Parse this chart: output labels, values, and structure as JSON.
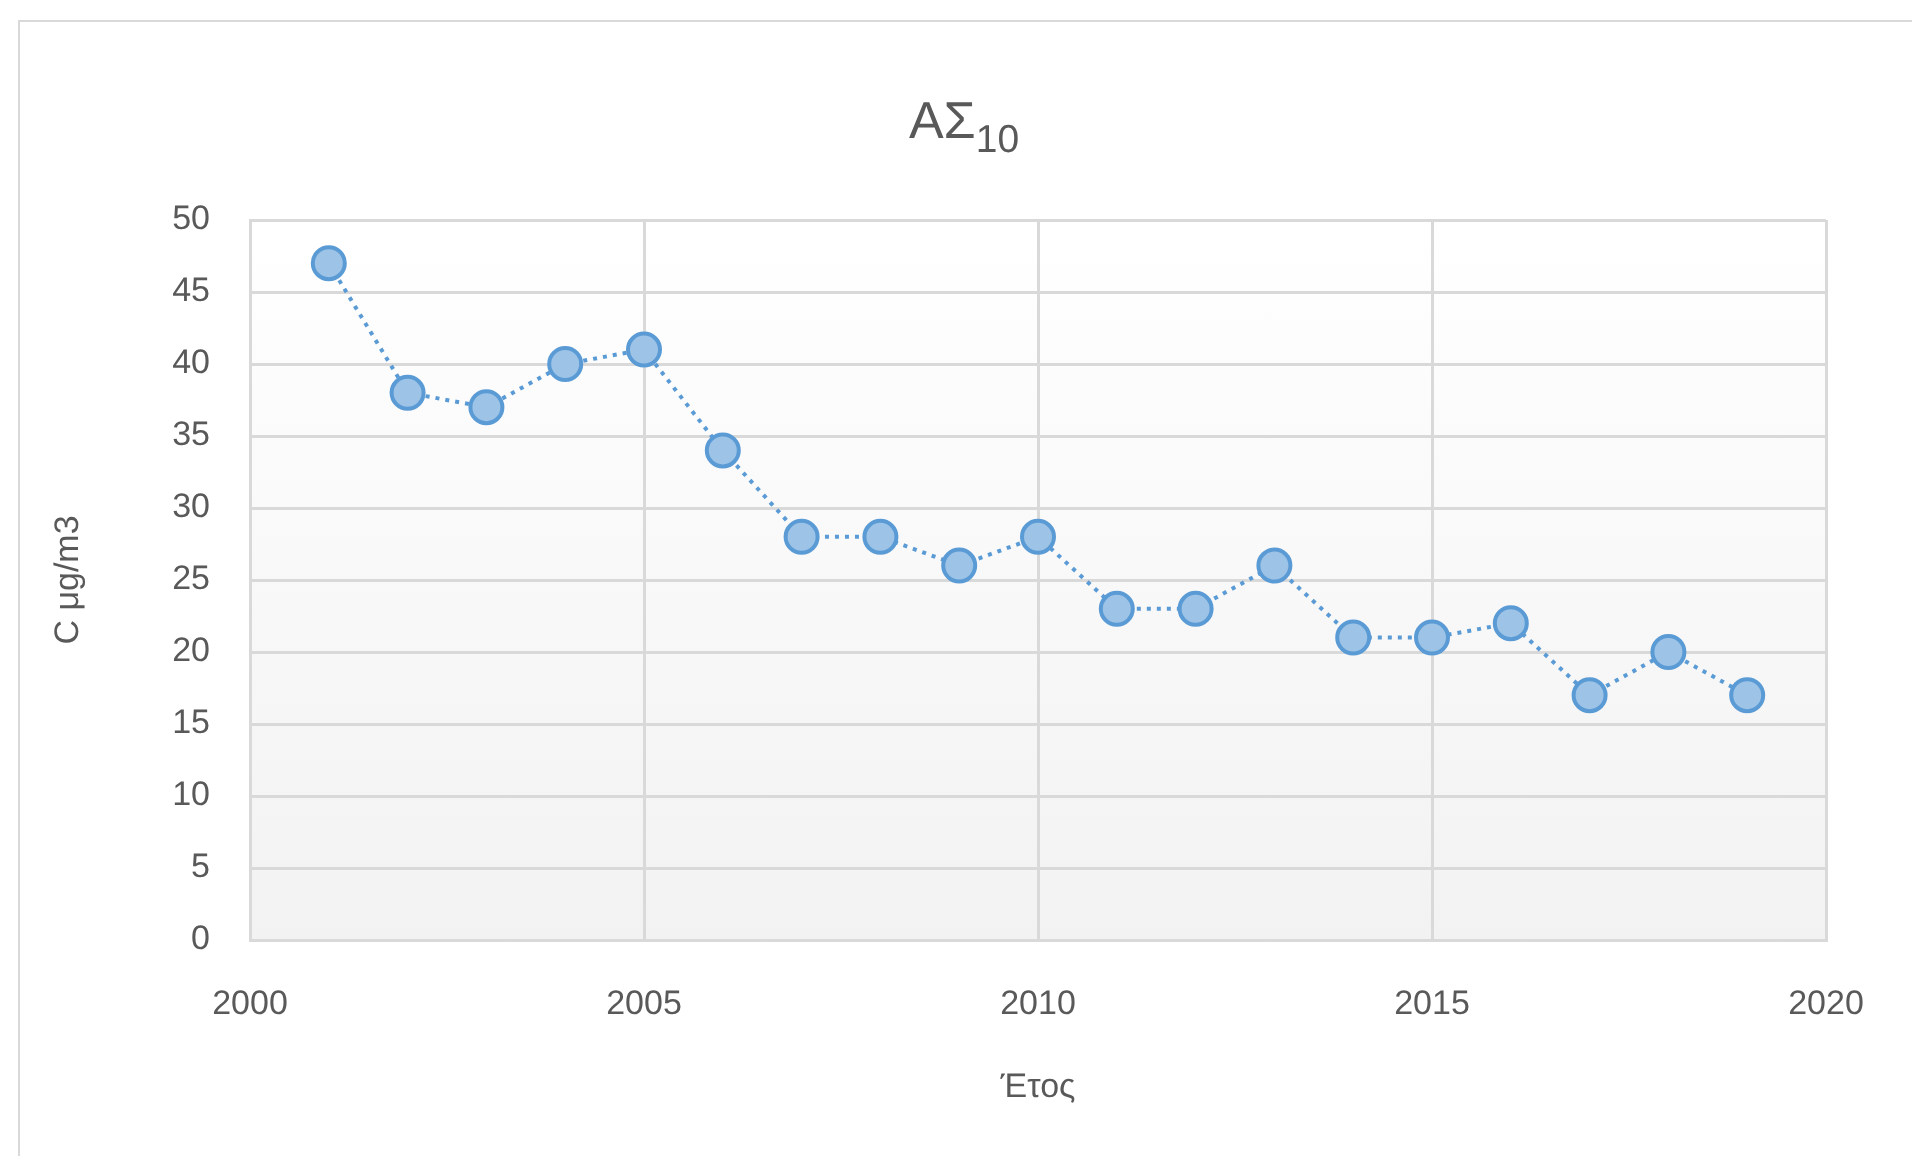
{
  "chart_data": {
    "type": "line",
    "title": "ΑΣ$_{10}$",
    "xlabel": "Έτος",
    "ylabel": "C μg/m3",
    "x": [
      2001,
      2002,
      2003,
      2004,
      2005,
      2006,
      2007,
      2008,
      2009,
      2010,
      2011,
      2012,
      2013,
      2014,
      2015,
      2016,
      2017,
      2018,
      2019
    ],
    "values": [
      47,
      38,
      37,
      40,
      41,
      34,
      28,
      28,
      26,
      28,
      23,
      23,
      26,
      21,
      21,
      22,
      17,
      20,
      17
    ],
    "color": "#5b9bd5",
    "xlim": [
      2000,
      2020
    ],
    "xticks": [
      2000,
      2005,
      2010,
      2015,
      2020
    ],
    "ylim": [
      0,
      50
    ],
    "yticks": [
      0,
      5,
      10,
      15,
      20,
      25,
      30,
      35,
      40,
      45,
      50
    ],
    "grid": true,
    "marker": "circle",
    "line_style": "dotted"
  }
}
